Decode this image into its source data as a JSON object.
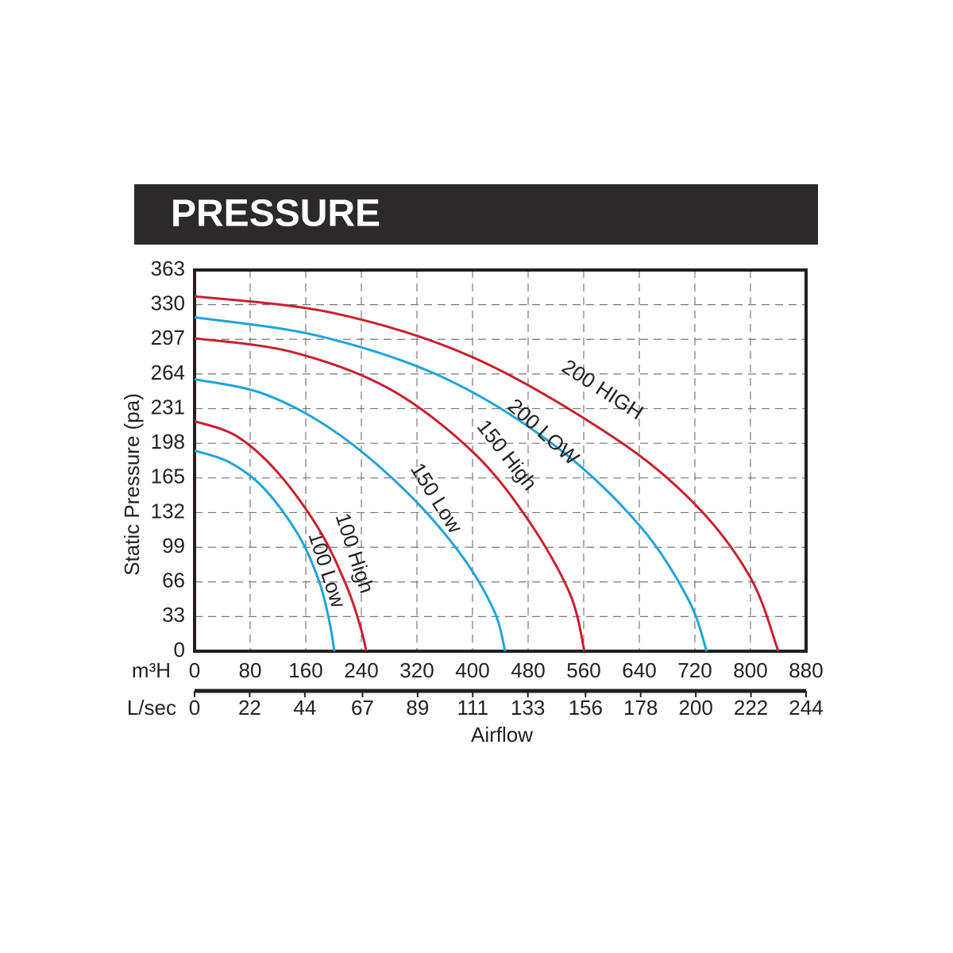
{
  "chart_data": {
    "type": "line",
    "title": "PRESSURE",
    "y_label": "Static Pressure (pa)",
    "x_label": "Airflow",
    "x_unit": "m³H",
    "x2_unit": "L/sec",
    "xlim": [
      0,
      880
    ],
    "xticks": [
      0,
      80,
      160,
      240,
      320,
      400,
      480,
      560,
      640,
      720,
      800,
      880
    ],
    "x2lim": [
      0,
      244
    ],
    "x2ticks": [
      0,
      22,
      44,
      67,
      89,
      111,
      133,
      156,
      178,
      200,
      222,
      244
    ],
    "ylim": [
      0,
      363
    ],
    "yticks": [
      0,
      33,
      66,
      99,
      132,
      165,
      198,
      231,
      264,
      297,
      330,
      363
    ],
    "grid": true,
    "series": [
      {
        "name": "100 Low",
        "color": "#1fa3d8",
        "x": [
          0,
          50,
          100,
          150,
          180,
          195,
          201
        ],
        "values": [
          191,
          180,
          155,
          110,
          65,
          25,
          0
        ]
      },
      {
        "name": "100 High",
        "color": "#c8202f",
        "x": [
          0,
          60,
          120,
          180,
          220,
          240,
          247
        ],
        "values": [
          219,
          205,
          170,
          115,
          60,
          20,
          0
        ]
      },
      {
        "name": "150 Low",
        "color": "#1fa3d8",
        "x": [
          0,
          100,
          200,
          300,
          380,
          430,
          447
        ],
        "values": [
          259,
          245,
          210,
          155,
          95,
          40,
          0
        ]
      },
      {
        "name": "150 High",
        "color": "#c8202f",
        "x": [
          0,
          140,
          280,
          400,
          480,
          540,
          561
        ],
        "values": [
          298,
          285,
          250,
          190,
          125,
          55,
          0
        ]
      },
      {
        "name": "200 LOW",
        "color": "#1fa3d8",
        "x": [
          0,
          180,
          360,
          520,
          640,
          710,
          737
        ],
        "values": [
          318,
          300,
          260,
          195,
          120,
          50,
          0
        ]
      },
      {
        "name": "200 HIGH",
        "color": "#c8202f",
        "x": [
          0,
          200,
          400,
          600,
          720,
          800,
          840
        ],
        "values": [
          338,
          322,
          280,
          205,
          140,
          70,
          0
        ]
      }
    ]
  }
}
